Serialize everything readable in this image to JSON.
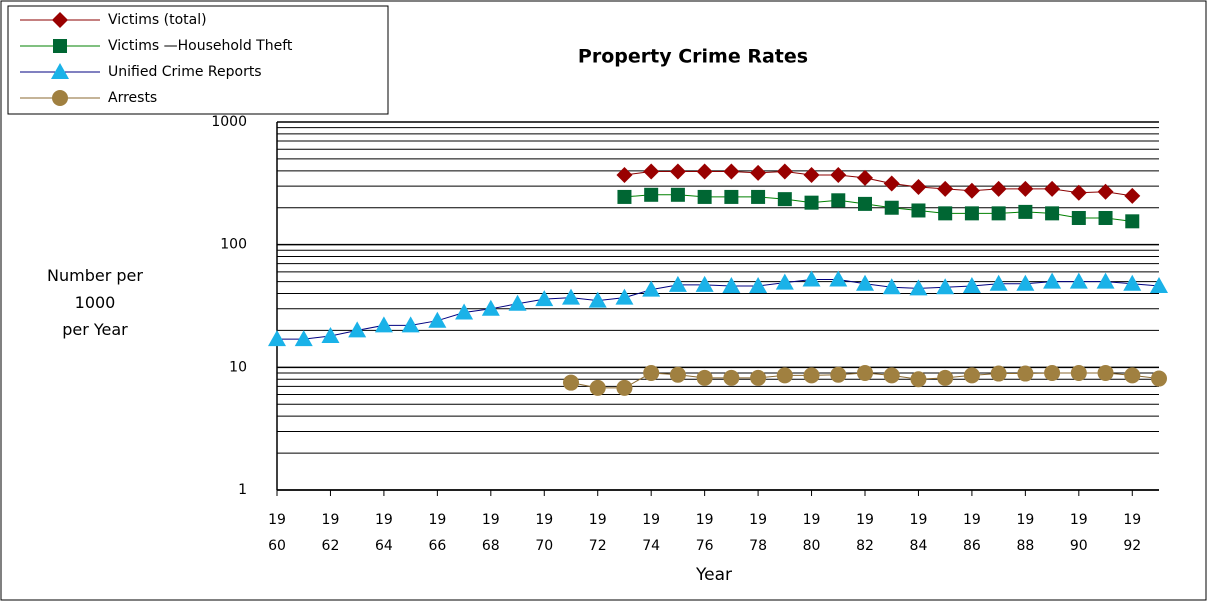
{
  "chart_data": {
    "type": "line",
    "title": "Property Crime Rates",
    "ylabel": "Number per\n1000\nper Year",
    "xlabel": "Year",
    "log_y": true,
    "grid": true,
    "legend": "upper left",
    "x": [
      1960,
      1961,
      1962,
      1963,
      1964,
      1965,
      1966,
      1967,
      1968,
      1969,
      1970,
      1971,
      1972,
      1973,
      1974,
      1975,
      1976,
      1977,
      1978,
      1979,
      1980,
      1981,
      1982,
      1983,
      1984,
      1985,
      1986,
      1987,
      1988,
      1989,
      1990,
      1991,
      1992,
      1993
    ],
    "xlim": [
      1960,
      1993
    ],
    "xticks": [
      {
        "value": 1960,
        "label": "19\n60"
      },
      {
        "value": 1962,
        "label": "19\n62"
      },
      {
        "value": 1964,
        "label": "19\n64"
      },
      {
        "value": 1966,
        "label": "19\n66"
      },
      {
        "value": 1968,
        "label": "19\n68"
      },
      {
        "value": 1970,
        "label": "19\n70"
      },
      {
        "value": 1972,
        "label": "19\n72"
      },
      {
        "value": 1974,
        "label": "19\n74"
      },
      {
        "value": 1976,
        "label": "19\n76"
      },
      {
        "value": 1978,
        "label": "19\n78"
      },
      {
        "value": 1980,
        "label": "19\n80"
      },
      {
        "value": 1982,
        "label": "19\n82"
      },
      {
        "value": 1984,
        "label": "19\n84"
      },
      {
        "value": 1986,
        "label": "19\n86"
      },
      {
        "value": 1988,
        "label": "19\n88"
      },
      {
        "value": 1990,
        "label": "19\n90"
      },
      {
        "value": 1992,
        "label": "19\n92"
      }
    ],
    "ylim": [
      1,
      1000
    ],
    "yticks": [
      1,
      10,
      100,
      1000
    ],
    "yminorgrid": [
      2,
      3,
      4,
      5,
      6,
      7,
      8,
      9,
      20,
      30,
      40,
      50,
      60,
      70,
      80,
      90,
      200,
      300,
      400,
      500,
      600,
      700,
      800,
      900
    ],
    "series": [
      {
        "name": "Victims (total)",
        "color": "#990000",
        "line_color": "#8b0000",
        "marker": "diamond",
        "values": [
          null,
          null,
          null,
          null,
          null,
          null,
          null,
          null,
          null,
          null,
          null,
          null,
          null,
          370,
          395,
          395,
          395,
          395,
          385,
          395,
          370,
          370,
          350,
          315,
          295,
          285,
          275,
          285,
          285,
          285,
          265,
          270,
          250,
          null
        ]
      },
      {
        "name": "Victims —Household Theft",
        "color": "#006633",
        "line_color": "#008000",
        "marker": "square",
        "values": [
          null,
          null,
          null,
          null,
          null,
          null,
          null,
          null,
          null,
          null,
          null,
          null,
          null,
          245,
          255,
          255,
          245,
          245,
          245,
          235,
          220,
          230,
          215,
          200,
          190,
          180,
          180,
          180,
          185,
          180,
          165,
          165,
          155,
          null
        ]
      },
      {
        "name": "Unified Crime Reports",
        "color": "#1ab2e8",
        "line_color": "#000080",
        "marker": "triangle",
        "values": [
          17,
          17,
          18,
          20,
          22,
          22,
          24,
          28,
          30,
          33,
          36,
          37,
          35,
          37,
          43,
          47,
          47,
          46,
          46,
          49,
          52,
          52,
          48,
          45,
          44,
          45,
          46,
          48,
          48,
          50,
          50,
          50,
          48,
          46
        ]
      },
      {
        "name": "Arrests",
        "color": "#a08040",
        "line_color": "#8b6a30",
        "marker": "circle",
        "values": [
          null,
          null,
          null,
          null,
          null,
          null,
          null,
          null,
          null,
          null,
          null,
          7.5,
          6.8,
          6.8,
          9.0,
          8.7,
          8.2,
          8.2,
          8.2,
          8.6,
          8.6,
          8.7,
          9.0,
          8.6,
          8.0,
          8.2,
          8.6,
          8.9,
          8.9,
          9.0,
          9.0,
          9.0,
          8.6,
          8.1
        ]
      }
    ]
  }
}
